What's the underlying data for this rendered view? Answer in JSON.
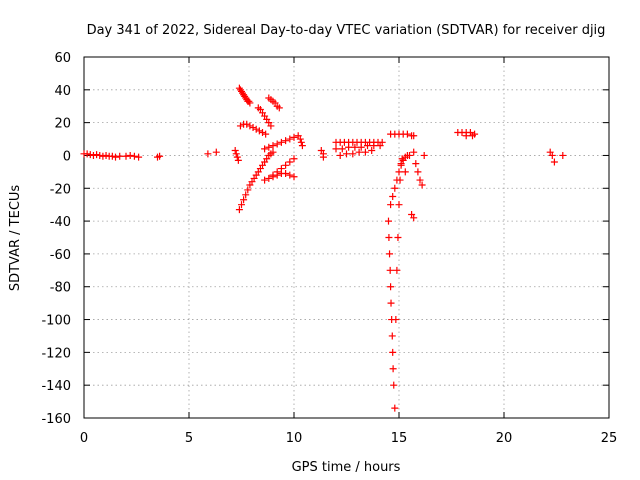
{
  "chart_data": {
    "type": "scatter",
    "title": "Day 341 of 2022, Sidereal Day-to-day VTEC variation (SDTVAR) for receiver djig",
    "xlabel": "GPS time / hours",
    "ylabel": "SDTVAR / TECUs",
    "xlim": [
      0,
      25
    ],
    "ylim": [
      -160,
      60
    ],
    "xticks": [
      "0",
      "5",
      "10",
      "15",
      "20",
      "25"
    ],
    "yticks": [
      "-160",
      "-140",
      "-120",
      "-100",
      "-80",
      "-60",
      "-40",
      "-20",
      "0",
      "20",
      "40",
      "60"
    ],
    "grid": true,
    "marker": "plus",
    "color": "#ff0000",
    "series": [
      {
        "name": "early-low",
        "x": [
          0.0,
          0.15,
          0.3,
          0.45,
          0.6,
          0.75,
          0.9,
          1.05,
          1.2,
          1.35,
          1.5,
          1.7,
          2.0,
          2.2,
          2.4,
          2.6,
          3.5,
          3.6
        ],
        "y": [
          1,
          1,
          0.5,
          0,
          0.5,
          0,
          -0.5,
          0,
          -0.5,
          -0.5,
          -1,
          -0.5,
          -0.5,
          0,
          -0.5,
          -1,
          -1,
          -0.5
        ]
      },
      {
        "name": "isolated-6",
        "x": [
          5.9,
          6.3
        ],
        "y": [
          1,
          2
        ]
      },
      {
        "name": "arc-a-up",
        "x": [
          7.4,
          7.45,
          7.5,
          7.55,
          7.6,
          7.65,
          7.7,
          7.75,
          7.8,
          7.85,
          7.9
        ],
        "y": [
          41,
          40,
          39,
          38,
          37,
          36,
          35,
          34,
          33,
          33,
          32
        ]
      },
      {
        "name": "arc-a-col",
        "x": [
          7.2,
          7.25,
          7.3,
          7.35
        ],
        "y": [
          3,
          1,
          -1,
          -3
        ]
      },
      {
        "name": "arc-b",
        "x": [
          7.45,
          7.6,
          7.75,
          7.9,
          8.05,
          8.2,
          8.35,
          8.5,
          8.65
        ],
        "y": [
          18,
          19,
          19,
          18,
          17,
          16,
          15,
          14,
          13
        ]
      },
      {
        "name": "arc-c",
        "x": [
          8.3,
          8.4,
          8.5,
          8.6,
          8.7,
          8.8,
          8.9
        ],
        "y": [
          29,
          28,
          26,
          24,
          22,
          20,
          18
        ]
      },
      {
        "name": "arc-d",
        "x": [
          8.8,
          8.9,
          9.0,
          9.1,
          9.2,
          9.3
        ],
        "y": [
          35,
          34,
          33,
          32,
          30,
          29
        ]
      },
      {
        "name": "arc-e-rise",
        "x": [
          7.4,
          7.5,
          7.6,
          7.7,
          7.8,
          7.9,
          8.0,
          8.1,
          8.2,
          8.3,
          8.4,
          8.5,
          8.6,
          8.7,
          8.8,
          8.9,
          9.0
        ],
        "y": [
          -33,
          -30,
          -27,
          -24,
          -21,
          -18,
          -16,
          -14,
          -12,
          -10,
          -8,
          -6,
          -4,
          -2,
          0,
          1,
          2
        ]
      },
      {
        "name": "arc-f-rise",
        "x": [
          8.6,
          8.8,
          9.0,
          9.2,
          9.4,
          9.6,
          9.8,
          10.0
        ],
        "y": [
          4,
          5,
          6,
          7,
          8,
          9,
          10,
          11
        ]
      },
      {
        "name": "arc-g-rise",
        "x": [
          8.6,
          8.8,
          9.0,
          9.2,
          9.4,
          9.6,
          9.8,
          10.0
        ],
        "y": [
          -15,
          -14,
          -12,
          -10,
          -8,
          -6,
          -4,
          -2
        ]
      },
      {
        "name": "arc-h",
        "x": [
          9.0,
          9.2,
          9.4,
          9.6,
          9.8,
          10.0
        ],
        "y": [
          -13,
          -12,
          -11,
          -11,
          -12,
          -13
        ]
      },
      {
        "name": "cluster-10",
        "x": [
          10.2,
          10.3,
          10.35,
          10.4,
          11.3,
          11.4,
          11.4
        ],
        "y": [
          12,
          10,
          8,
          6,
          3,
          1,
          -1
        ]
      },
      {
        "name": "band-12-14",
        "x": [
          12.0,
          12.2,
          12.4,
          12.6,
          12.8,
          13.0,
          13.2,
          13.4,
          13.6,
          13.8,
          14.0,
          14.2,
          12.0,
          12.3,
          12.6,
          12.9,
          13.2,
          13.5,
          13.8,
          14.1,
          12.2,
          12.5,
          12.8,
          13.1,
          13.4,
          13.7
        ],
        "y": [
          8,
          8,
          8,
          8,
          8,
          8,
          8,
          8,
          8,
          8,
          8,
          8,
          4,
          4,
          5,
          5,
          5,
          6,
          6,
          6,
          0,
          1,
          1,
          2,
          2,
          3
        ]
      },
      {
        "name": "line-14-15",
        "x": [
          14.6,
          14.8,
          15.0,
          15.2,
          15.4,
          15.6,
          15.7
        ],
        "y": [
          13,
          13,
          13,
          13,
          13,
          12,
          12
        ]
      },
      {
        "name": "dive",
        "x": [
          14.5,
          14.52,
          14.55,
          14.58,
          14.6,
          14.62,
          14.65,
          14.68,
          14.7,
          14.72,
          14.75,
          14.8,
          14.85,
          14.9,
          14.95,
          15.0,
          15.05,
          15.1,
          15.15
        ],
        "y": [
          -40,
          -50,
          -60,
          -70,
          -80,
          -90,
          -100,
          -110,
          -120,
          -130,
          -140,
          -154,
          -100,
          -70,
          -50,
          -30,
          -15,
          -5,
          -2
        ]
      },
      {
        "name": "dive-upper",
        "x": [
          14.6,
          14.7,
          14.8,
          14.9,
          15.0,
          15.1,
          15.2,
          15.3,
          15.4
        ],
        "y": [
          -30,
          -25,
          -20,
          -15,
          -10,
          -6,
          -3,
          -1,
          0
        ]
      },
      {
        "name": "scatter-15-16",
        "x": [
          15.3,
          15.5,
          15.7,
          15.8,
          15.9,
          16.0,
          16.1,
          16.2,
          15.6,
          15.7
        ],
        "y": [
          -10,
          0,
          2,
          -5,
          -10,
          -15,
          -18,
          0,
          -36,
          -38
        ]
      },
      {
        "name": "cluster-18",
        "x": [
          17.8,
          18.0,
          18.2,
          18.4,
          18.6,
          18.2,
          18.5
        ],
        "y": [
          14,
          14,
          14,
          14,
          13,
          12,
          12
        ]
      },
      {
        "name": "cluster-22",
        "x": [
          22.2,
          22.3,
          22.4,
          22.8
        ],
        "y": [
          2,
          0,
          -4,
          0
        ]
      }
    ]
  }
}
